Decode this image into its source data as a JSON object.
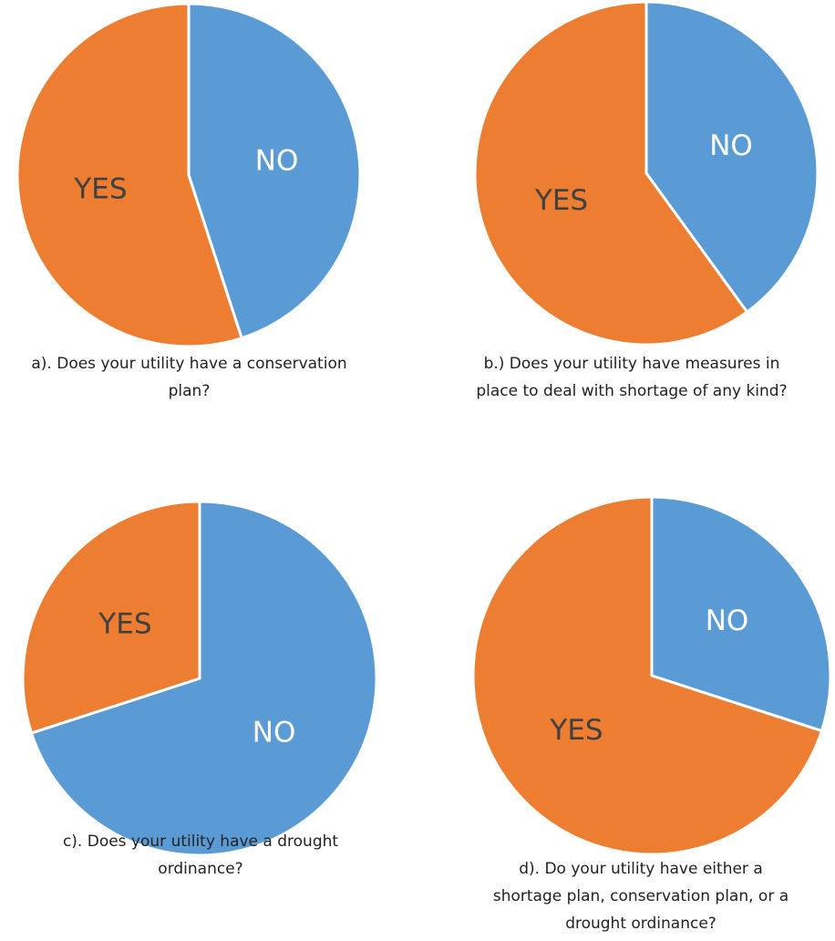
{
  "colors": {
    "yes": "#ED7D31",
    "no": "#5B9BD5",
    "label_yes": "#404040",
    "label_no": "#ffffff"
  },
  "chart_data": [
    {
      "type": "pie",
      "categories": [
        "NO",
        "YES"
      ],
      "values": [
        45,
        55
      ],
      "caption_lines": [
        "a). Does your utility have a conservation",
        "plan?"
      ]
    },
    {
      "type": "pie",
      "categories": [
        "NO",
        "YES"
      ],
      "values": [
        40,
        60
      ],
      "caption_lines": [
        "b.) Does your utility have measures in",
        "place to deal with shortage of any kind?"
      ]
    },
    {
      "type": "pie",
      "categories": [
        "NO",
        "YES"
      ],
      "values": [
        70,
        30
      ],
      "caption_lines": [
        "c). Does your utility have a drought",
        "ordinance?"
      ]
    },
    {
      "type": "pie",
      "categories": [
        "NO",
        "YES"
      ],
      "values": [
        30,
        70
      ],
      "caption_lines": [
        "d). Do your utility have either a",
        "shortage plan, conservation plan, or a",
        "drought ordinance?"
      ]
    }
  ]
}
